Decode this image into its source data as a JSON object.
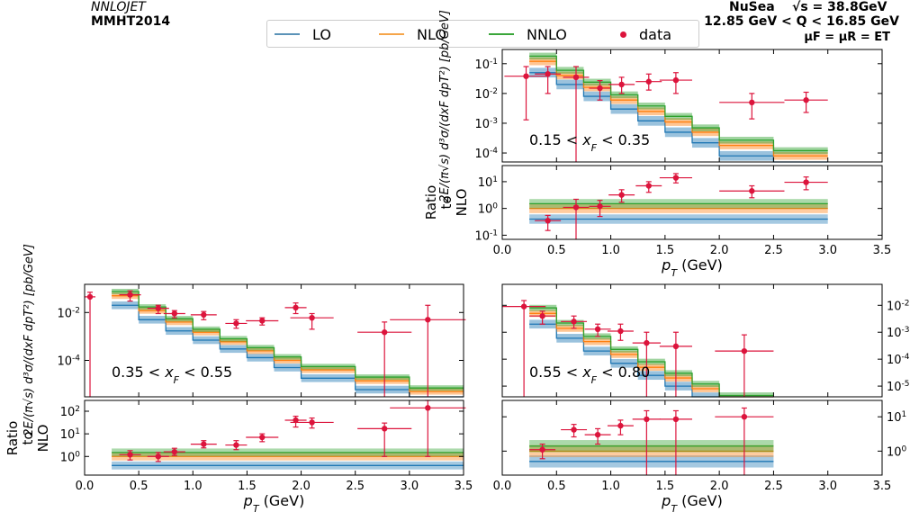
{
  "header": {
    "program": "NNLOJET",
    "pdf": "MMHT2014",
    "experiment": "NuSea",
    "sqrts": "√s = 38.8GeV",
    "q_range": "12.85 GeV < Q < 16.85 GeV",
    "scale": "μF = μR = ET"
  },
  "legend": {
    "items": [
      {
        "label": "LO",
        "color": "#5b93b8",
        "kind": "line"
      },
      {
        "label": "NLO",
        "color": "#f5a54a",
        "kind": "line"
      },
      {
        "label": "NNLO",
        "color": "#3aa63a",
        "kind": "line"
      },
      {
        "label": "data",
        "color": "#dc143c",
        "kind": "dot"
      }
    ]
  },
  "colors": {
    "lo": "#1f77b4",
    "nlo": "#ff7f0e",
    "nnlo": "#2ca02c",
    "data": "#dc143c"
  },
  "axes": {
    "xlabel": "pT (GeV)",
    "ylabel_xsec": "2E/(π√s) d³σ/(dxF dpT²) [pb/GeV]",
    "ylabel_ratio": "Ratio to NLO"
  },
  "chart_data": [
    {
      "type": "line",
      "region": "0.15 < xF < 0.35",
      "xlim": [
        0,
        3.5
      ],
      "xticks": [
        "0.0",
        "0.5",
        "1.0",
        "1.5",
        "2.0",
        "2.5",
        "3.0",
        "3.5"
      ],
      "yscale": "log",
      "ylim": [
        5e-05,
        0.3
      ],
      "yticks": [
        "10^-4",
        "10^-3",
        "10^-2",
        "10^-1"
      ],
      "ratio_ylim": [
        0.07,
        40
      ],
      "ratio_yticks": [
        "10^-1",
        "10^0",
        "10^1"
      ],
      "bin_edges": [
        0.25,
        0.5,
        0.75,
        1.0,
        1.25,
        1.5,
        1.75,
        2.0,
        2.5,
        3.0
      ],
      "series": [
        {
          "name": "LO",
          "values": [
            0.05,
            0.02,
            0.008,
            0.003,
            0.0012,
            0.0005,
            0.00022,
            8e-05,
            3e-05
          ]
        },
        {
          "name": "NLO",
          "values": [
            0.12,
            0.04,
            0.016,
            0.006,
            0.0025,
            0.0011,
            0.0005,
            0.00018,
            8e-05
          ]
        },
        {
          "name": "NNLO",
          "values": [
            0.18,
            0.06,
            0.024,
            0.009,
            0.0038,
            0.0017,
            0.0007,
            0.00027,
            0.00012
          ]
        }
      ],
      "data": {
        "x": [
          0.22,
          0.42,
          0.68,
          0.9,
          1.1,
          1.35,
          1.6,
          2.3,
          2.8
        ],
        "y": [
          0.038,
          0.045,
          0.035,
          0.015,
          0.02,
          0.025,
          0.028,
          0.005,
          0.006
        ],
        "xerr": [
          0.2,
          0.12,
          0.12,
          0.1,
          0.12,
          0.12,
          0.15,
          0.3,
          0.2
        ],
        "ylo": [
          0.0013,
          0.01,
          1e-05,
          0.006,
          0.01,
          0.013,
          0.01,
          0.0014,
          0.0023
        ],
        "yhi": [
          0.08,
          0.08,
          0.08,
          0.027,
          0.035,
          0.045,
          0.05,
          0.01,
          0.011
        ],
        "ratio": [
          0.35,
          1.1,
          1.2,
          3.2,
          7,
          14,
          4.5,
          9.5
        ],
        "ratio_x": [
          0.42,
          0.68,
          0.9,
          1.1,
          1.35,
          1.6,
          2.3,
          2.8
        ],
        "ratio_lo": [
          0.15,
          0.06,
          0.5,
          1.7,
          4,
          9,
          2.5,
          5
        ],
        "ratio_hi": [
          0.55,
          2.2,
          2.0,
          5,
          10,
          20,
          7,
          15
        ]
      },
      "ratio_bands": {
        "LO": 0.4,
        "NLO": 1.0,
        "NNLO": 1.5
      }
    },
    {
      "type": "line",
      "region": "0.35 < xF < 0.55",
      "xlim": [
        0,
        3.5
      ],
      "xticks": [
        "0.0",
        "0.5",
        "1.0",
        "1.5",
        "2.0",
        "2.5",
        "3.0",
        "3.5"
      ],
      "yscale": "log",
      "ylim": [
        3e-06,
        0.15
      ],
      "yticks": [
        "10^-4",
        "10^-2"
      ],
      "ratio_ylim": [
        0.15,
        300
      ],
      "ratio_yticks": [
        "10^0",
        "10^1",
        "10^2"
      ],
      "bin_edges": [
        0.25,
        0.5,
        0.75,
        1.0,
        1.25,
        1.5,
        1.75,
        2.0,
        2.5,
        3.0,
        3.5
      ],
      "series": [
        {
          "name": "LO",
          "values": [
            0.02,
            0.005,
            0.0017,
            0.0007,
            0.0003,
            0.00013,
            5e-05,
            1.8e-05,
            6e-06,
            2e-06
          ]
        },
        {
          "name": "NLO",
          "values": [
            0.05,
            0.012,
            0.004,
            0.0015,
            0.0006,
            0.00025,
            0.0001,
            4e-05,
            1.4e-05,
            5e-06
          ]
        },
        {
          "name": "NNLO",
          "values": [
            0.075,
            0.017,
            0.0055,
            0.002,
            0.0008,
            0.00034,
            0.00014,
            5.5e-05,
            2e-05,
            7e-06
          ]
        }
      ],
      "data": {
        "x": [
          0.05,
          0.42,
          0.68,
          0.83,
          1.1,
          1.4,
          1.64,
          1.95,
          2.1,
          2.77,
          3.17
        ],
        "y": [
          0.045,
          0.055,
          0.015,
          0.009,
          0.008,
          0.0035,
          0.0045,
          0.016,
          0.006,
          0.0015,
          0.005
        ],
        "xerr": [
          0.05,
          0.1,
          0.1,
          0.1,
          0.12,
          0.1,
          0.15,
          0.1,
          0.2,
          0.25,
          0.35
        ],
        "ylo": [
          1e-06,
          0.03,
          0.009,
          0.006,
          0.005,
          0.0022,
          0.003,
          0.009,
          0.002,
          1e-06,
          1e-06
        ],
        "yhi": [
          0.07,
          0.08,
          0.02,
          0.012,
          0.011,
          0.005,
          0.006,
          0.025,
          0.009,
          0.004,
          0.02
        ],
        "ratio": [
          1.2,
          1.0,
          1.6,
          3.5,
          3.2,
          7,
          40,
          32,
          17,
          140
        ],
        "ratio_x": [
          0.42,
          0.68,
          0.83,
          1.1,
          1.4,
          1.64,
          1.95,
          2.1,
          2.77,
          3.17
        ],
        "ratio_lo": [
          0.7,
          0.6,
          1.1,
          2.4,
          2.0,
          4.5,
          20,
          18,
          1,
          1
        ],
        "ratio_hi": [
          1.8,
          1.5,
          2.3,
          5,
          5,
          10,
          60,
          50,
          30,
          300
        ]
      },
      "ratio_bands": {
        "LO": 0.4,
        "NLO": 1.0,
        "NNLO": 1.5
      }
    },
    {
      "type": "line",
      "region": "0.55 < xF < 0.80",
      "xlim": [
        0,
        3.5
      ],
      "xticks": [
        "0.0",
        "0.5",
        "1.0",
        "1.5",
        "2.0",
        "2.5",
        "3.0",
        "3.5"
      ],
      "yscale": "log",
      "ylim": [
        4e-06,
        0.06
      ],
      "yticks": [
        "10^-5",
        "10^-4",
        "10^-3",
        "10^-2"
      ],
      "ratio_ylim": [
        0.2,
        30
      ],
      "ratio_yticks": [
        "10^0",
        "10^1"
      ],
      "bin_edges": [
        0.25,
        0.5,
        0.75,
        1.0,
        1.25,
        1.5,
        1.75,
        2.0,
        2.5
      ],
      "series": [
        {
          "name": "LO",
          "values": [
            0.002,
            0.0006,
            0.0002,
            7e-05,
            2.5e-05,
            1e-05,
            4e-06,
            1.5e-06
          ]
        },
        {
          "name": "NLO",
          "values": [
            0.005,
            0.0014,
            0.00045,
            0.00015,
            5e-05,
            2e-05,
            8e-06,
            3e-06
          ]
        },
        {
          "name": "NNLO",
          "values": [
            0.008,
            0.0022,
            0.0007,
            0.00023,
            8e-05,
            3e-05,
            1.2e-05,
            4.5e-06
          ]
        }
      ],
      "data": {
        "x": [
          0.2,
          0.37,
          0.66,
          0.88,
          1.09,
          1.33,
          1.6,
          2.23
        ],
        "y": [
          0.009,
          0.004,
          0.0025,
          0.0013,
          0.0011,
          0.0004,
          0.0003,
          0.0002
        ],
        "xerr": [
          0.2,
          0.12,
          0.12,
          0.12,
          0.12,
          0.13,
          0.15,
          0.27
        ],
        "ylo": [
          1e-06,
          0.002,
          0.0014,
          0.0007,
          0.0005,
          1e-06,
          1e-06,
          1e-06
        ],
        "yhi": [
          0.015,
          0.006,
          0.004,
          0.002,
          0.002,
          0.001,
          0.001,
          0.0008
        ],
        "ratio": [
          1.1,
          4.2,
          3.0,
          5.5,
          8.5,
          8.5,
          10
        ],
        "ratio_x": [
          0.37,
          0.66,
          0.88,
          1.09,
          1.33,
          1.6,
          2.23
        ],
        "ratio_lo": [
          0.6,
          2.6,
          1.6,
          3,
          0.1,
          0.1,
          0.1
        ],
        "ratio_hi": [
          1.6,
          6,
          4.5,
          8,
          15,
          15,
          18
        ]
      },
      "ratio_bands": {
        "LO": 0.5,
        "NLO": 1.0,
        "NNLO": 1.4
      }
    }
  ]
}
